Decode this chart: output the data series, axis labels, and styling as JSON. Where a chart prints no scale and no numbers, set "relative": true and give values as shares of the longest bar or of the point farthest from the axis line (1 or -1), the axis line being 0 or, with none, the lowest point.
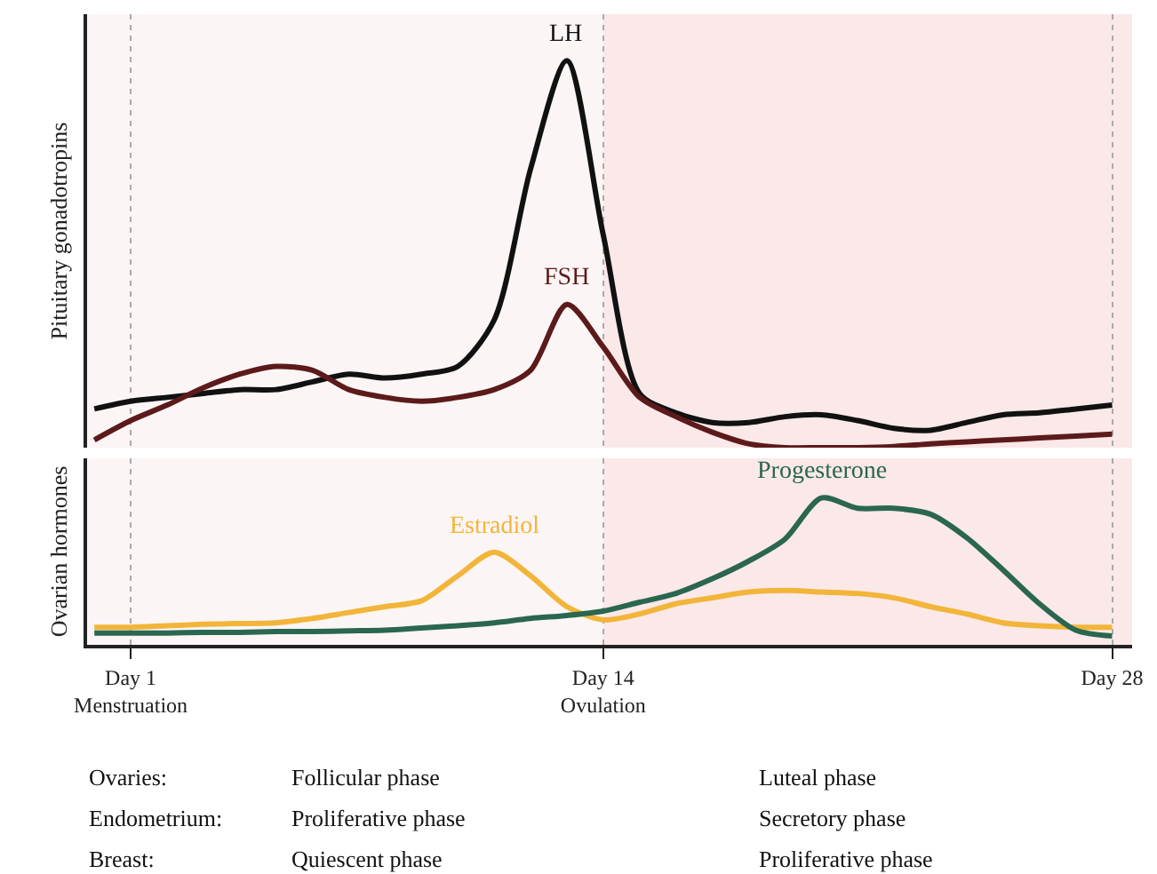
{
  "chart_data": [
    {
      "type": "line",
      "relative": true,
      "ylabel": "Pituitary gonadotropins",
      "tick_labels": false,
      "grid": "x",
      "marker": "none",
      "line_style": "solid",
      "categories": [
        null,
        "Day 1\nMenstruation",
        null,
        null,
        null,
        null,
        null,
        null,
        null,
        null,
        null,
        null,
        null,
        null,
        "Day 14\nOvulation",
        null,
        null,
        null,
        null,
        null,
        null,
        null,
        null,
        null,
        null,
        null,
        null,
        null,
        "Day 28"
      ],
      "series": [
        {
          "name": "LH",
          "color": "#111111",
          "values": [
            0.1,
            0.12,
            0.13,
            0.14,
            0.15,
            0.15,
            0.17,
            0.19,
            0.18,
            0.19,
            0.21,
            0.33,
            0.72,
            1.0,
            0.55,
            0.14,
            0.09,
            0.065,
            0.065,
            0.08,
            0.085,
            0.07,
            0.05,
            0.045,
            0.065,
            0.085,
            0.09,
            0.1,
            0.11
          ]
        },
        {
          "name": "FSH",
          "color": "#5c1a1a",
          "values": [
            0.02,
            0.07,
            0.11,
            0.155,
            0.19,
            0.21,
            0.2,
            0.15,
            0.13,
            0.12,
            0.13,
            0.15,
            0.2,
            0.37,
            0.26,
            0.13,
            0.08,
            0.04,
            0.01,
            0.0,
            0.0,
            0.0,
            0.003,
            0.01,
            0.015,
            0.02,
            0.025,
            0.03,
            0.035
          ]
        }
      ],
      "bands": [
        {
          "axis": "x",
          "from": "Day 14\nOvulation",
          "to": "Day 28",
          "color": "#fbe8e8"
        }
      ]
    },
    {
      "type": "line",
      "relative": true,
      "ylabel": "Ovarian hormones",
      "tick_labels": "x",
      "grid": "x",
      "marker": "none",
      "line_style": "solid",
      "categories": [
        null,
        "Day 1\nMenstruation",
        null,
        null,
        null,
        null,
        null,
        null,
        null,
        null,
        null,
        null,
        null,
        null,
        "Day 14\nOvulation",
        null,
        null,
        null,
        null,
        null,
        null,
        null,
        null,
        null,
        null,
        null,
        null,
        null,
        "Day 28"
      ],
      "series": [
        {
          "name": "Estradiol",
          "color": "#f2b53a",
          "values": [
            0.12,
            0.12,
            0.13,
            0.14,
            0.145,
            0.15,
            0.18,
            0.22,
            0.26,
            0.3,
            0.47,
            0.63,
            0.47,
            0.26,
            0.17,
            0.21,
            0.28,
            0.32,
            0.36,
            0.37,
            0.36,
            0.35,
            0.32,
            0.26,
            0.21,
            0.15,
            0.13,
            0.12,
            0.12
          ]
        },
        {
          "name": "Progesterone",
          "color": "#2a6650",
          "values": [
            0.08,
            0.08,
            0.08,
            0.085,
            0.085,
            0.09,
            0.09,
            0.095,
            0.1,
            0.115,
            0.13,
            0.15,
            0.18,
            0.2,
            0.23,
            0.29,
            0.35,
            0.45,
            0.57,
            0.72,
            1.0,
            0.93,
            0.93,
            0.89,
            0.73,
            0.51,
            0.28,
            0.1,
            0.06
          ]
        }
      ],
      "bands": [
        {
          "axis": "x",
          "from": "Day 14\nOvulation",
          "to": "Day 28",
          "color": "#fbe8e8"
        }
      ],
      "annotations": [
        "Ovaries:",
        "Follicular phase",
        "Luteal phase",
        "Endometrium:",
        "Proliferative phase",
        "Secretory phase",
        "Breast:",
        "Quiescent phase",
        "Proliferative phase"
      ]
    }
  ]
}
